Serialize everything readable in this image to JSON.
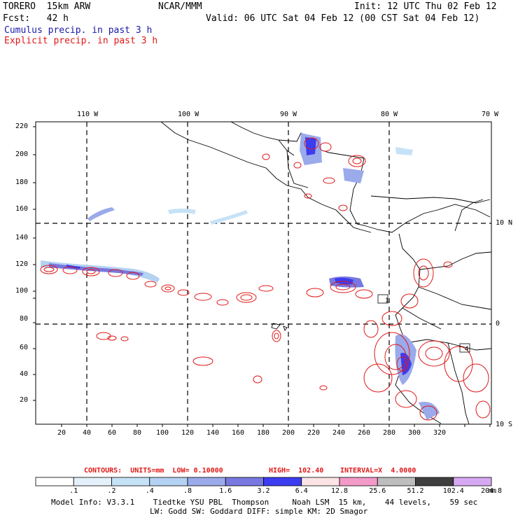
{
  "header": {
    "model": "TORERO  15km ARW",
    "org": "NCAR/MMM",
    "init": "Init: 12 UTC Thu 02 Feb 12",
    "fcst": "Fcst:   42 h",
    "valid": "Valid: 06 UTC Sat 04 Feb 12 (00 CST Sat 04 Feb 12)"
  },
  "legend": {
    "cumulus": "Cumulus precip. in past 3 h",
    "explicit": "Explicit precip. in past 3 h"
  },
  "map": {
    "x_ticks": [
      "20",
      "40",
      "60",
      "80",
      "100",
      "120",
      "140",
      "160",
      "180",
      "200",
      "220",
      "240",
      "260",
      "280",
      "300",
      "320"
    ],
    "y_ticks": [
      "20",
      "40",
      "60",
      "80",
      "100",
      "120",
      "140",
      "160",
      "180",
      "200",
      "220"
    ],
    "lon_labels": [
      "110 W",
      "100 W",
      "90 W",
      "80 W",
      "70 W"
    ],
    "lat_labels": [
      "10 N",
      "0",
      "10 S"
    ],
    "box_markers": [
      "1",
      "4"
    ]
  },
  "contours_line": {
    "prefix": "CONTOURS:  UNITS=mm  LOW= 0.10000",
    "high": "HIGH=  102.40",
    "interval": "INTERVAL=X  4.0000"
  },
  "colorbar": {
    "labels": [
      ".1",
      ".2",
      ".4",
      ".8",
      "1.6",
      "3.2",
      "6.4",
      "12.8",
      "25.6",
      "51.2",
      "102.4",
      "204.8"
    ],
    "unit": "mm",
    "colors": [
      "#ffffff",
      "#e4f0fa",
      "#c6e2f7",
      "#b4d2f2",
      "#9aaaea",
      "#7878e0",
      "#3c3cf0",
      "#fce4e4",
      "#f49ac8",
      "#bdbdbd",
      "#3f3f3f",
      "#d7a8f2"
    ]
  },
  "model_info": {
    "line1": "Model Info: V3.3.1    Tiedtke YSU PBL  Thompson     Noah LSM  15 km,    44 levels,    59 sec",
    "line2": "LW: Godd SW: Goddard DIFF: simple KM: 2D Smagor"
  }
}
